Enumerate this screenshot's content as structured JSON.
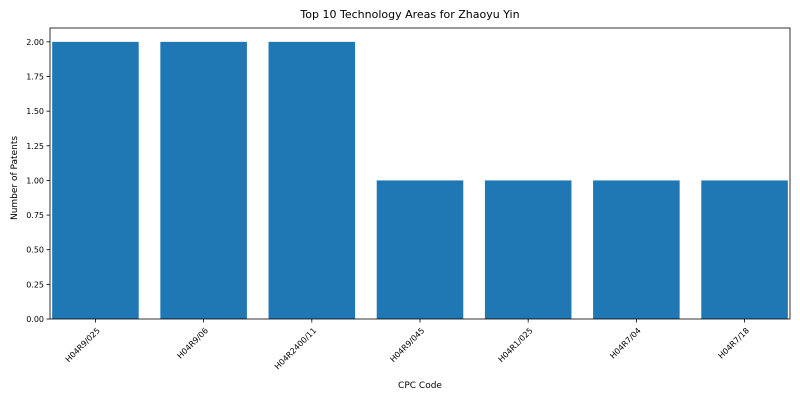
{
  "chart_data": {
    "type": "bar",
    "title": "Top 10 Technology Areas for Zhaoyu Yin",
    "xlabel": "CPC Code",
    "ylabel": "Number of Patents",
    "categories": [
      "H04R9/025",
      "H04R9/06",
      "H04R2400/11",
      "H04R9/045",
      "H04R1/025",
      "H04R7/04",
      "H04R7/18"
    ],
    "values": [
      2,
      2,
      2,
      1,
      1,
      1,
      1
    ],
    "ylim": [
      0,
      2.1
    ],
    "yticks": [
      "0.00",
      "0.25",
      "0.50",
      "0.75",
      "1.00",
      "1.25",
      "1.50",
      "1.75",
      "2.00"
    ],
    "grid": false,
    "bar_color": "#1f77b4"
  }
}
